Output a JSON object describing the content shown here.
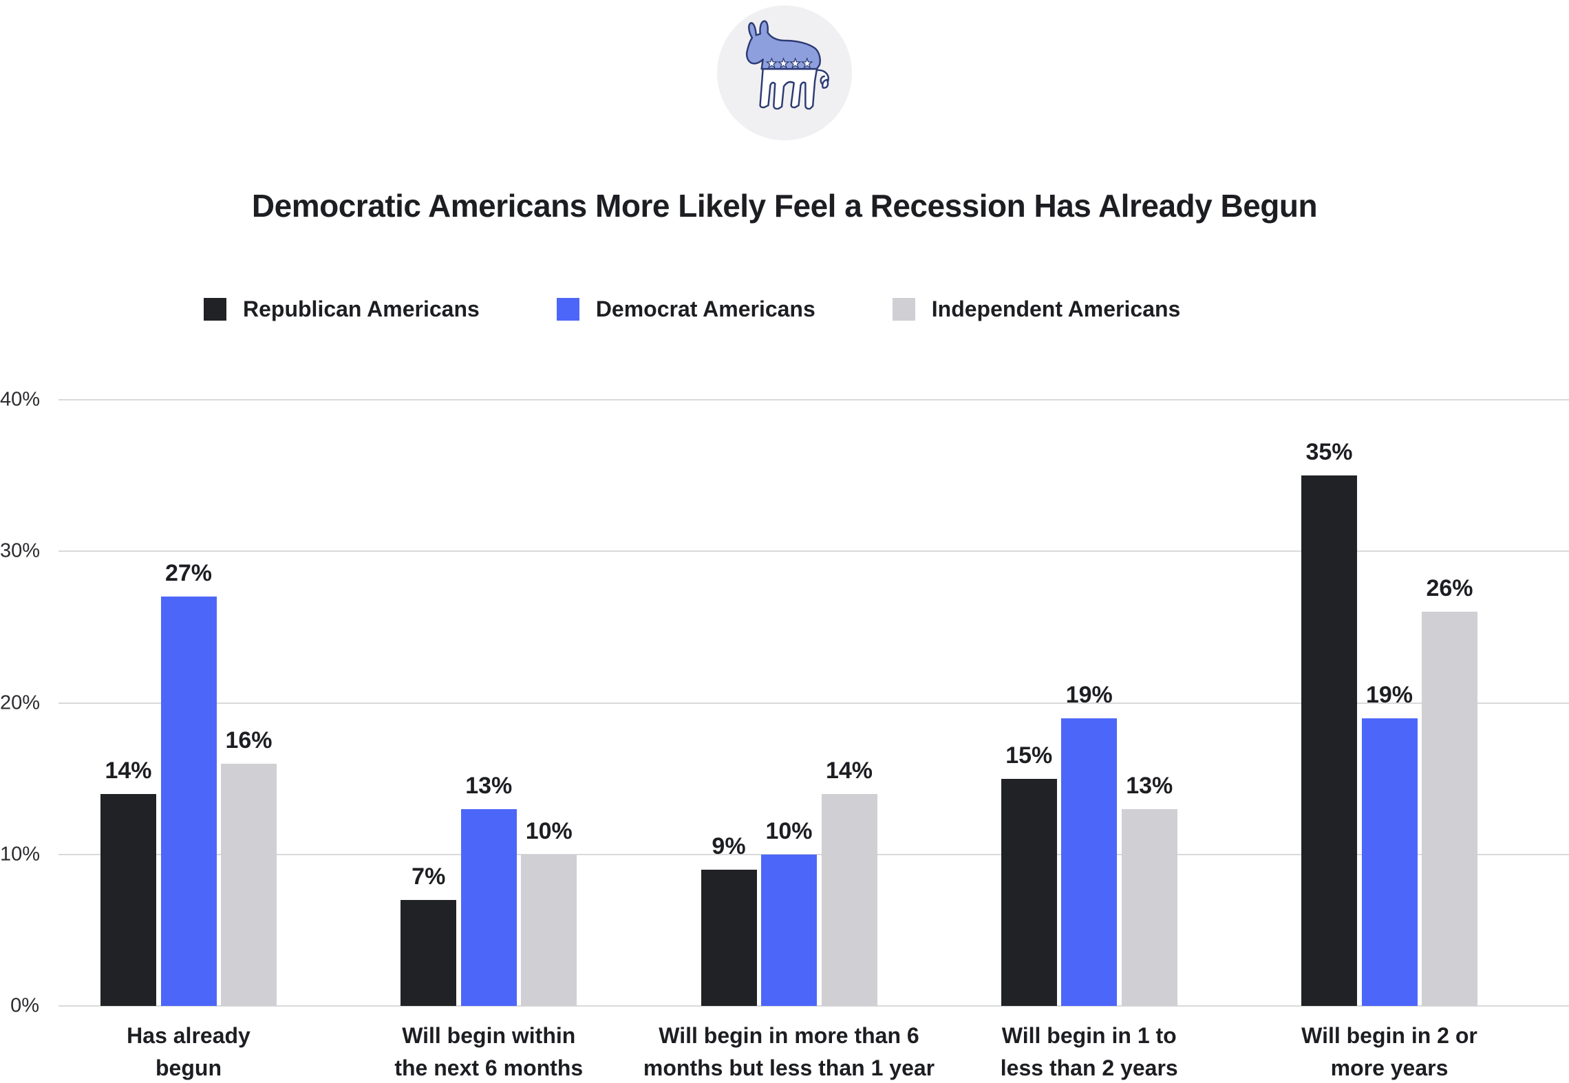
{
  "logo": {
    "icon": "democratic-party-donkey",
    "circle_color": "#f0f0f2",
    "donkey_fill": "#8da0dd",
    "donkey_outline": "#2c3a74",
    "star_color": "#ffffff"
  },
  "chart_data": {
    "type": "bar",
    "title": "Democratic Americans More Likely Feel a Recession Has Already Begun",
    "categories": [
      "Has already begun",
      "Will begin within the next 6 months",
      "Will begin in more than 6 months but less than 1 year",
      "Will begin in 1 to less than 2 years",
      "Will begin in 2 or more years"
    ],
    "category_lines": [
      [
        "Has already",
        "begun"
      ],
      [
        "Will begin within",
        "the next 6 months"
      ],
      [
        "Will begin in more than 6",
        "months but less than 1 year"
      ],
      [
        "Will begin in 1 to",
        "less than 2 years"
      ],
      [
        "Will begin in 2 or",
        "more years"
      ]
    ],
    "series": [
      {
        "name": "Republican Americans",
        "color": "#212225",
        "values": [
          14,
          7,
          9,
          15,
          35
        ]
      },
      {
        "name": "Democrat Americans",
        "color": "#4d66fa",
        "values": [
          27,
          13,
          10,
          19,
          19
        ]
      },
      {
        "name": "Independent Americans",
        "color": "#cfcfd4",
        "values": [
          16,
          10,
          14,
          13,
          26
        ]
      }
    ],
    "value_suffix": "%",
    "yticks": {
      "values": [
        0,
        10,
        20,
        30,
        40
      ],
      "labels": [
        "0%",
        "10%",
        "20%",
        "30%",
        "40%"
      ]
    },
    "ylim": [
      0,
      40
    ],
    "xlabel": "",
    "ylabel": "",
    "grid": true,
    "legend_position": "top",
    "gridline_color": "#d9d9da",
    "axis_tick_color": "#2b2c2f",
    "text_color": "#1d1e22",
    "background_color": "#ffffff"
  }
}
